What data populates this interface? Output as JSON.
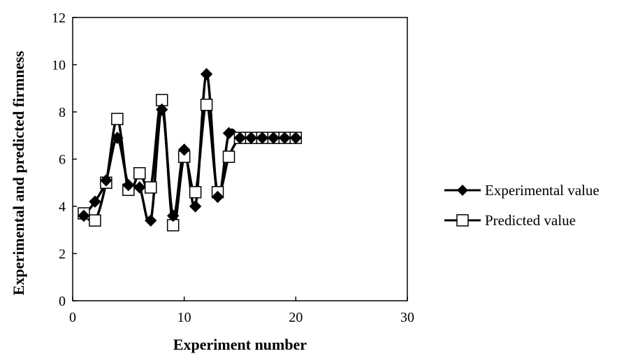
{
  "chart_data": {
    "type": "scatter",
    "title": "",
    "xlabel": "Experiment number",
    "ylabel": "Experimental and predicted firmness",
    "xlim": [
      0,
      30
    ],
    "ylim": [
      0,
      12
    ],
    "x_ticks": [
      0,
      10,
      20,
      30
    ],
    "y_ticks": [
      0,
      2,
      4,
      6,
      8,
      10,
      12
    ],
    "x_tick_labels": [
      "0",
      "10",
      "20",
      "30"
    ],
    "y_tick_labels": [
      "0",
      "2",
      "4",
      "6",
      "8",
      "10",
      "12"
    ],
    "grid": false,
    "legend_position": "right",
    "x": [
      1,
      2,
      3,
      4,
      5,
      6,
      7,
      8,
      9,
      10,
      11,
      12,
      13,
      14,
      15,
      16,
      17,
      18,
      19,
      20
    ],
    "series": [
      {
        "name": "Experimental value",
        "marker": "filled-diamond",
        "color": "#000000",
        "values": [
          3.6,
          4.2,
          5.1,
          6.9,
          4.9,
          4.8,
          3.4,
          8.1,
          3.6,
          6.4,
          4.0,
          9.6,
          4.4,
          7.1,
          6.9,
          6.9,
          6.9,
          6.9,
          6.9,
          6.9
        ]
      },
      {
        "name": "Predicted value",
        "marker": "open-square",
        "color": "#000000",
        "values": [
          3.7,
          3.4,
          5.0,
          7.7,
          4.7,
          5.4,
          4.8,
          8.5,
          3.2,
          6.1,
          4.6,
          8.3,
          4.6,
          6.1,
          6.9,
          6.9,
          6.9,
          6.9,
          6.9,
          6.9
        ]
      }
    ]
  }
}
